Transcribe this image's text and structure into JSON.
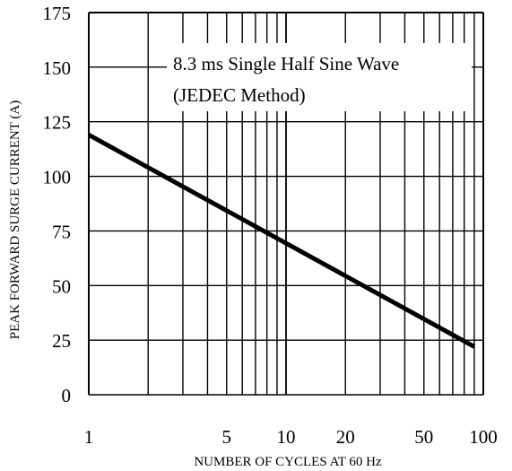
{
  "chart_data": {
    "type": "line",
    "xscale": "log",
    "xlim": [
      1,
      100
    ],
    "ylim": [
      0,
      175
    ],
    "grid": true,
    "xlabel": "NUMBER OF CYCLES AT 60 Hz",
    "ylabel": "PEAK FORWARD SURGE CURRENT (A)",
    "xticks": [
      1,
      5,
      10,
      20,
      50,
      100
    ],
    "xtick_labels": [
      "1",
      "5",
      "10",
      "20",
      "50",
      "100"
    ],
    "yticks": [
      0,
      25,
      50,
      75,
      100,
      125,
      150,
      175
    ],
    "ytick_labels": [
      "0",
      "25",
      "50",
      "75",
      "100",
      "125",
      "150",
      "175"
    ],
    "annotation": [
      "8.3 ms Single Half Sine Wave",
      "(JEDEC Method)"
    ],
    "series": [
      {
        "x": [
          1,
          90
        ],
        "y": [
          119,
          22
        ]
      }
    ],
    "colors": {
      "line": "#000000",
      "grid": "#000000"
    }
  }
}
